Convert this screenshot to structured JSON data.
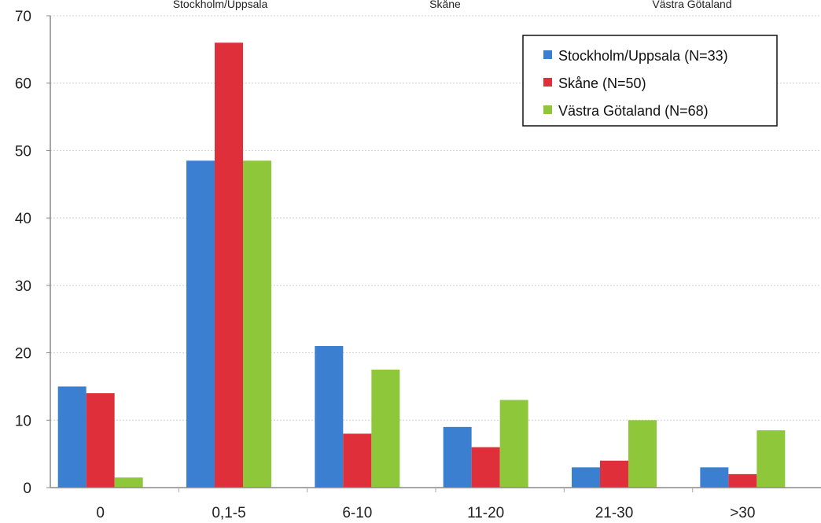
{
  "chart_data": {
    "type": "bar",
    "categories": [
      "0",
      "0,1-5",
      "6-10",
      "11-20",
      "21-30",
      ">30"
    ],
    "series": [
      {
        "name": "Stockholm/Uppsala (N=33)",
        "color": "#3a7fd0",
        "values": [
          15,
          48.5,
          21,
          9,
          3,
          3
        ]
      },
      {
        "name": "Skåne (N=50)",
        "color": "#de2f3a",
        "values": [
          14,
          66,
          8,
          6,
          4,
          2
        ]
      },
      {
        "name": "Västra Götaland (N=68)",
        "color": "#8ec73a",
        "values": [
          1.5,
          48.5,
          17.5,
          13,
          10,
          8.5
        ]
      }
    ],
    "ylim": [
      0,
      70
    ],
    "yticks": [
      "0",
      "10",
      "20",
      "30",
      "40",
      "50",
      "60",
      "70"
    ],
    "top_labels": [
      "Stockholm/Uppsala",
      "Skåne",
      "Västra Götaland"
    ],
    "grid": true,
    "legend_position": "top-right",
    "title": "",
    "xlabel": "",
    "ylabel": ""
  }
}
